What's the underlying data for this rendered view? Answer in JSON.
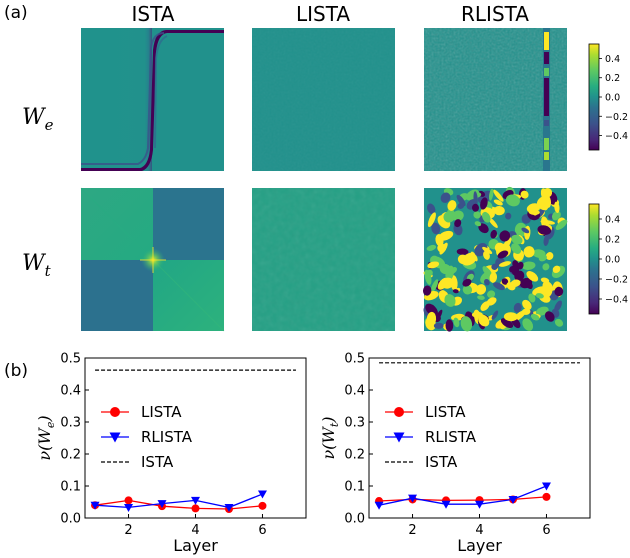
{
  "panels": {
    "a": "(a)",
    "b": "(b)"
  },
  "column_titles": [
    "ISTA",
    "LISTA",
    "RLISTA"
  ],
  "row_labels": [
    {
      "symbol": "W",
      "subscript": "e"
    },
    {
      "symbol": "W",
      "subscript": "t"
    }
  ],
  "colormap": {
    "name": "viridis",
    "stops": [
      "#440154",
      "#3b528b",
      "#21918c",
      "#5ec962",
      "#fde725"
    ]
  },
  "chart_data": [
    {
      "type": "heatmap",
      "row": "W_e",
      "columns": [
        "ISTA",
        "LISTA",
        "RLISTA"
      ],
      "colorbar": {
        "range": [
          -0.55,
          0.55
        ],
        "ticks": [
          0.4,
          0.2,
          0.0,
          -0.2,
          -0.4
        ],
        "tick_labels": [
          "0.4",
          "0.2",
          "0.0",
          "−0.2",
          "−0.4"
        ]
      }
    },
    {
      "type": "heatmap",
      "row": "W_t",
      "columns": [
        "ISTA",
        "LISTA",
        "RLISTA"
      ],
      "colorbar": {
        "range": [
          -0.55,
          0.55
        ],
        "ticks": [
          0.4,
          0.2,
          0.0,
          -0.2,
          -0.4
        ],
        "tick_labels": [
          "0.4",
          "0.2",
          "0.0",
          "−0.2",
          "−0.4"
        ]
      }
    },
    {
      "type": "line",
      "ylabel_symbol": "ν(W",
      "ylabel_sub": "e",
      "ylabel_close": ")",
      "xlabel": "Layer",
      "xlim": [
        0.7,
        7.3
      ],
      "ylim": [
        0,
        0.5
      ],
      "xticks": [
        2,
        4,
        6
      ],
      "yticks": [
        0.0,
        0.1,
        0.2,
        0.3,
        0.4,
        0.5
      ],
      "ytick_labels": [
        "0.0",
        "0.1",
        "0.2",
        "0.3",
        "0.4",
        "0.5"
      ],
      "legend": "center-left",
      "series": [
        {
          "name": "LISTA",
          "color": "#ff0000",
          "marker": "circle",
          "x": [
            1,
            2,
            3,
            4,
            5,
            6
          ],
          "y": [
            0.04,
            0.055,
            0.037,
            0.03,
            0.028,
            0.038
          ]
        },
        {
          "name": "RLISTA",
          "color": "#0000ff",
          "marker": "triangle-down",
          "x": [
            1,
            2,
            3,
            4,
            5,
            6
          ],
          "y": [
            0.04,
            0.033,
            0.045,
            0.055,
            0.033,
            0.075
          ]
        },
        {
          "name": "ISTA",
          "color": "#000000",
          "style": "dashed",
          "y_const": 0.462
        }
      ]
    },
    {
      "type": "line",
      "ylabel_symbol": "ν(W",
      "ylabel_sub": "t",
      "ylabel_close": ")",
      "xlabel": "Layer",
      "xlim": [
        0.7,
        7.3
      ],
      "ylim": [
        0,
        0.5
      ],
      "xticks": [
        2,
        4,
        6
      ],
      "yticks": [
        0.0,
        0.1,
        0.2,
        0.3,
        0.4,
        0.5
      ],
      "ytick_labels": [
        "0.0",
        "0.1",
        "0.2",
        "0.3",
        "0.4",
        "0.5"
      ],
      "legend": "center-left",
      "series": [
        {
          "name": "LISTA",
          "color": "#ff0000",
          "marker": "circle",
          "x": [
            1,
            2,
            3,
            4,
            5,
            6
          ],
          "y": [
            0.053,
            0.058,
            0.055,
            0.056,
            0.058,
            0.066
          ]
        },
        {
          "name": "RLISTA",
          "color": "#0000ff",
          "marker": "triangle-down",
          "x": [
            1,
            2,
            3,
            4,
            5,
            6
          ],
          "y": [
            0.04,
            0.062,
            0.043,
            0.043,
            0.058,
            0.1
          ]
        },
        {
          "name": "ISTA",
          "color": "#000000",
          "style": "dashed",
          "y_const": 0.485
        }
      ]
    }
  ]
}
